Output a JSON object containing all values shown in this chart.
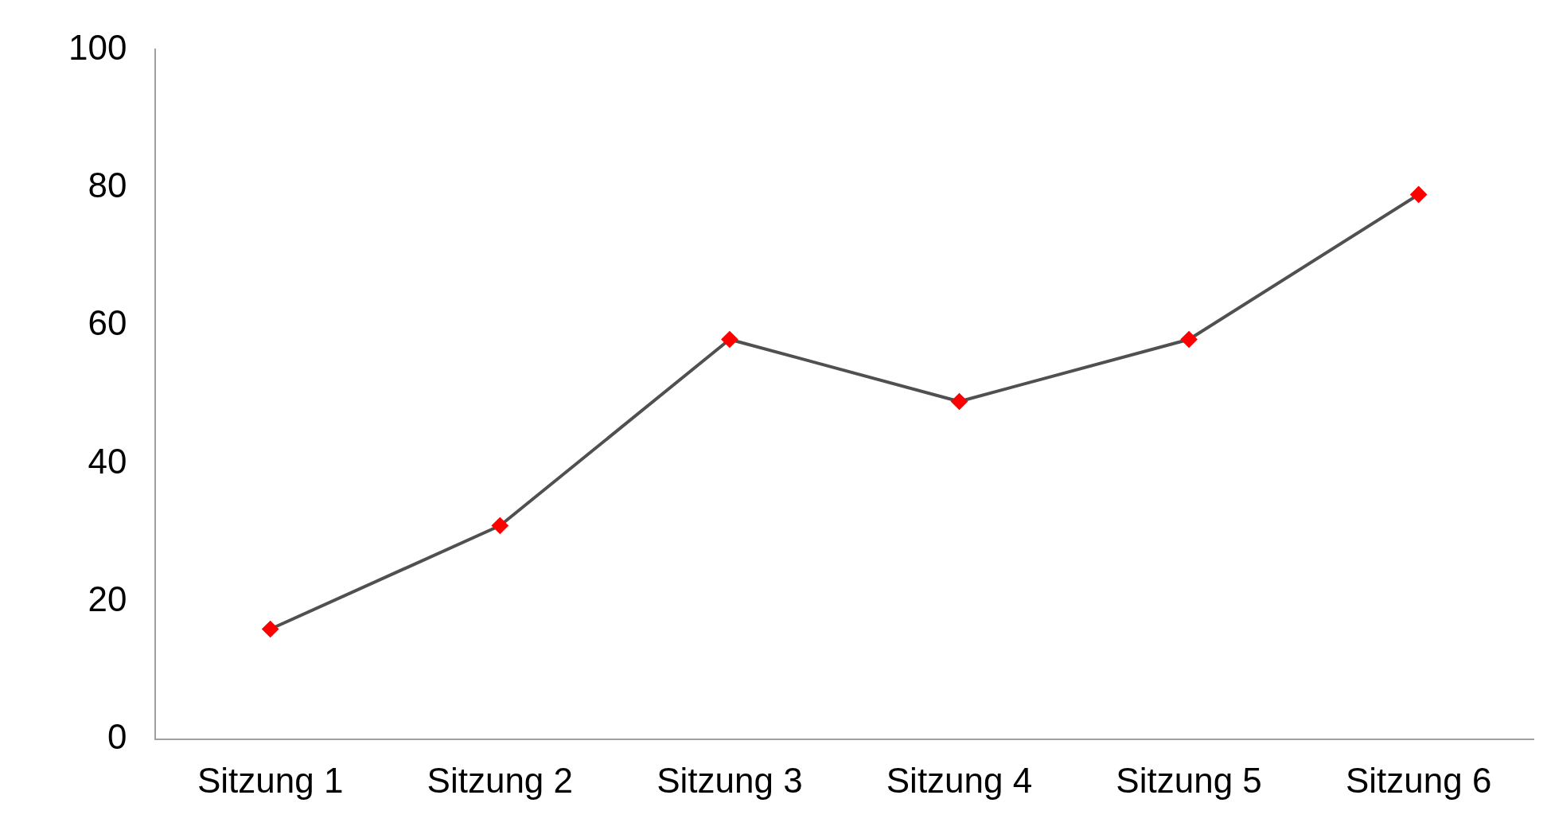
{
  "chart_data": {
    "type": "line",
    "categories": [
      "Sitzung 1",
      "Sitzung 2",
      "Sitzung 3",
      "Sitzung 4",
      "Sitzung 5",
      "Sitzung 6"
    ],
    "series": [
      {
        "color": "#505050",
        "values": [
          16,
          31,
          58,
          49,
          58,
          79
        ],
        "colors": [
          "#ff0000",
          "#ff0000",
          "#ff0000",
          "#ff0000",
          "#ff0000",
          "#ff0000"
        ]
      }
    ],
    "ylim": [
      0,
      100
    ],
    "yticks": [
      0,
      20,
      40,
      60,
      80,
      100
    ],
    "grid": false,
    "legend": false,
    "marker": "diamond",
    "line_style": "solid"
  }
}
